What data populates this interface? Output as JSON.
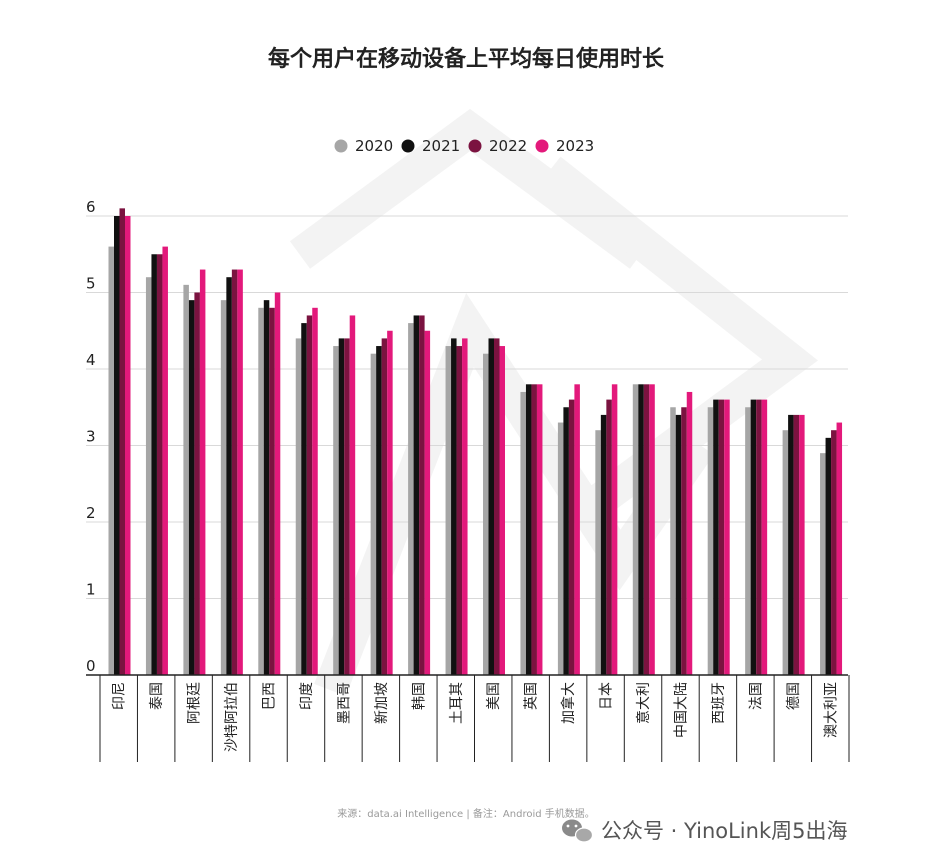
{
  "chart_data": {
    "type": "bar",
    "title": "每个用户在移动设备上平均每日使用时长",
    "categories": [
      "印尼",
      "泰国",
      "阿根廷",
      "沙特阿拉伯",
      "巴西",
      "印度",
      "墨西哥",
      "新加坡",
      "韩国",
      "土耳其",
      "美国",
      "英国",
      "加拿大",
      "日本",
      "意大利",
      "中国大陆",
      "西班牙",
      "法国",
      "德国",
      "澳大利亚"
    ],
    "series": [
      {
        "name": "2020",
        "color": "#a6a6a6",
        "values": [
          5.6,
          5.2,
          5.1,
          4.9,
          4.8,
          4.4,
          4.3,
          4.2,
          4.6,
          4.3,
          4.2,
          3.7,
          3.3,
          3.2,
          3.8,
          3.5,
          3.5,
          3.5,
          3.2,
          2.9
        ]
      },
      {
        "name": "2021",
        "color": "#111111",
        "values": [
          6.0,
          5.5,
          4.9,
          5.2,
          4.9,
          4.6,
          4.4,
          4.3,
          4.7,
          4.4,
          4.4,
          3.8,
          3.5,
          3.4,
          3.8,
          3.4,
          3.6,
          3.6,
          3.4,
          3.1
        ]
      },
      {
        "name": "2022",
        "color": "#7b1340",
        "values": [
          6.1,
          5.5,
          5.0,
          5.3,
          4.8,
          4.7,
          4.4,
          4.4,
          4.7,
          4.3,
          4.4,
          3.8,
          3.6,
          3.6,
          3.8,
          3.5,
          3.6,
          3.6,
          3.4,
          3.2
        ]
      },
      {
        "name": "2023",
        "color": "#e3197b",
        "values": [
          6.0,
          5.6,
          5.3,
          5.3,
          5.0,
          4.8,
          4.7,
          4.5,
          4.5,
          4.4,
          4.3,
          3.8,
          3.8,
          3.8,
          3.8,
          3.7,
          3.6,
          3.6,
          3.4,
          3.3
        ]
      }
    ],
    "yticks": [
      0,
      1,
      2,
      3,
      4,
      5,
      6
    ],
    "ylim": [
      0,
      6.6
    ],
    "grid": true,
    "legend_position": "top-center"
  },
  "source_note": "来源：data.ai Intelligence | 备注：Android 手机数据。",
  "watermark": {
    "text": "公众号 · YinoLink周5出海",
    "icon": "wechat-icon"
  }
}
